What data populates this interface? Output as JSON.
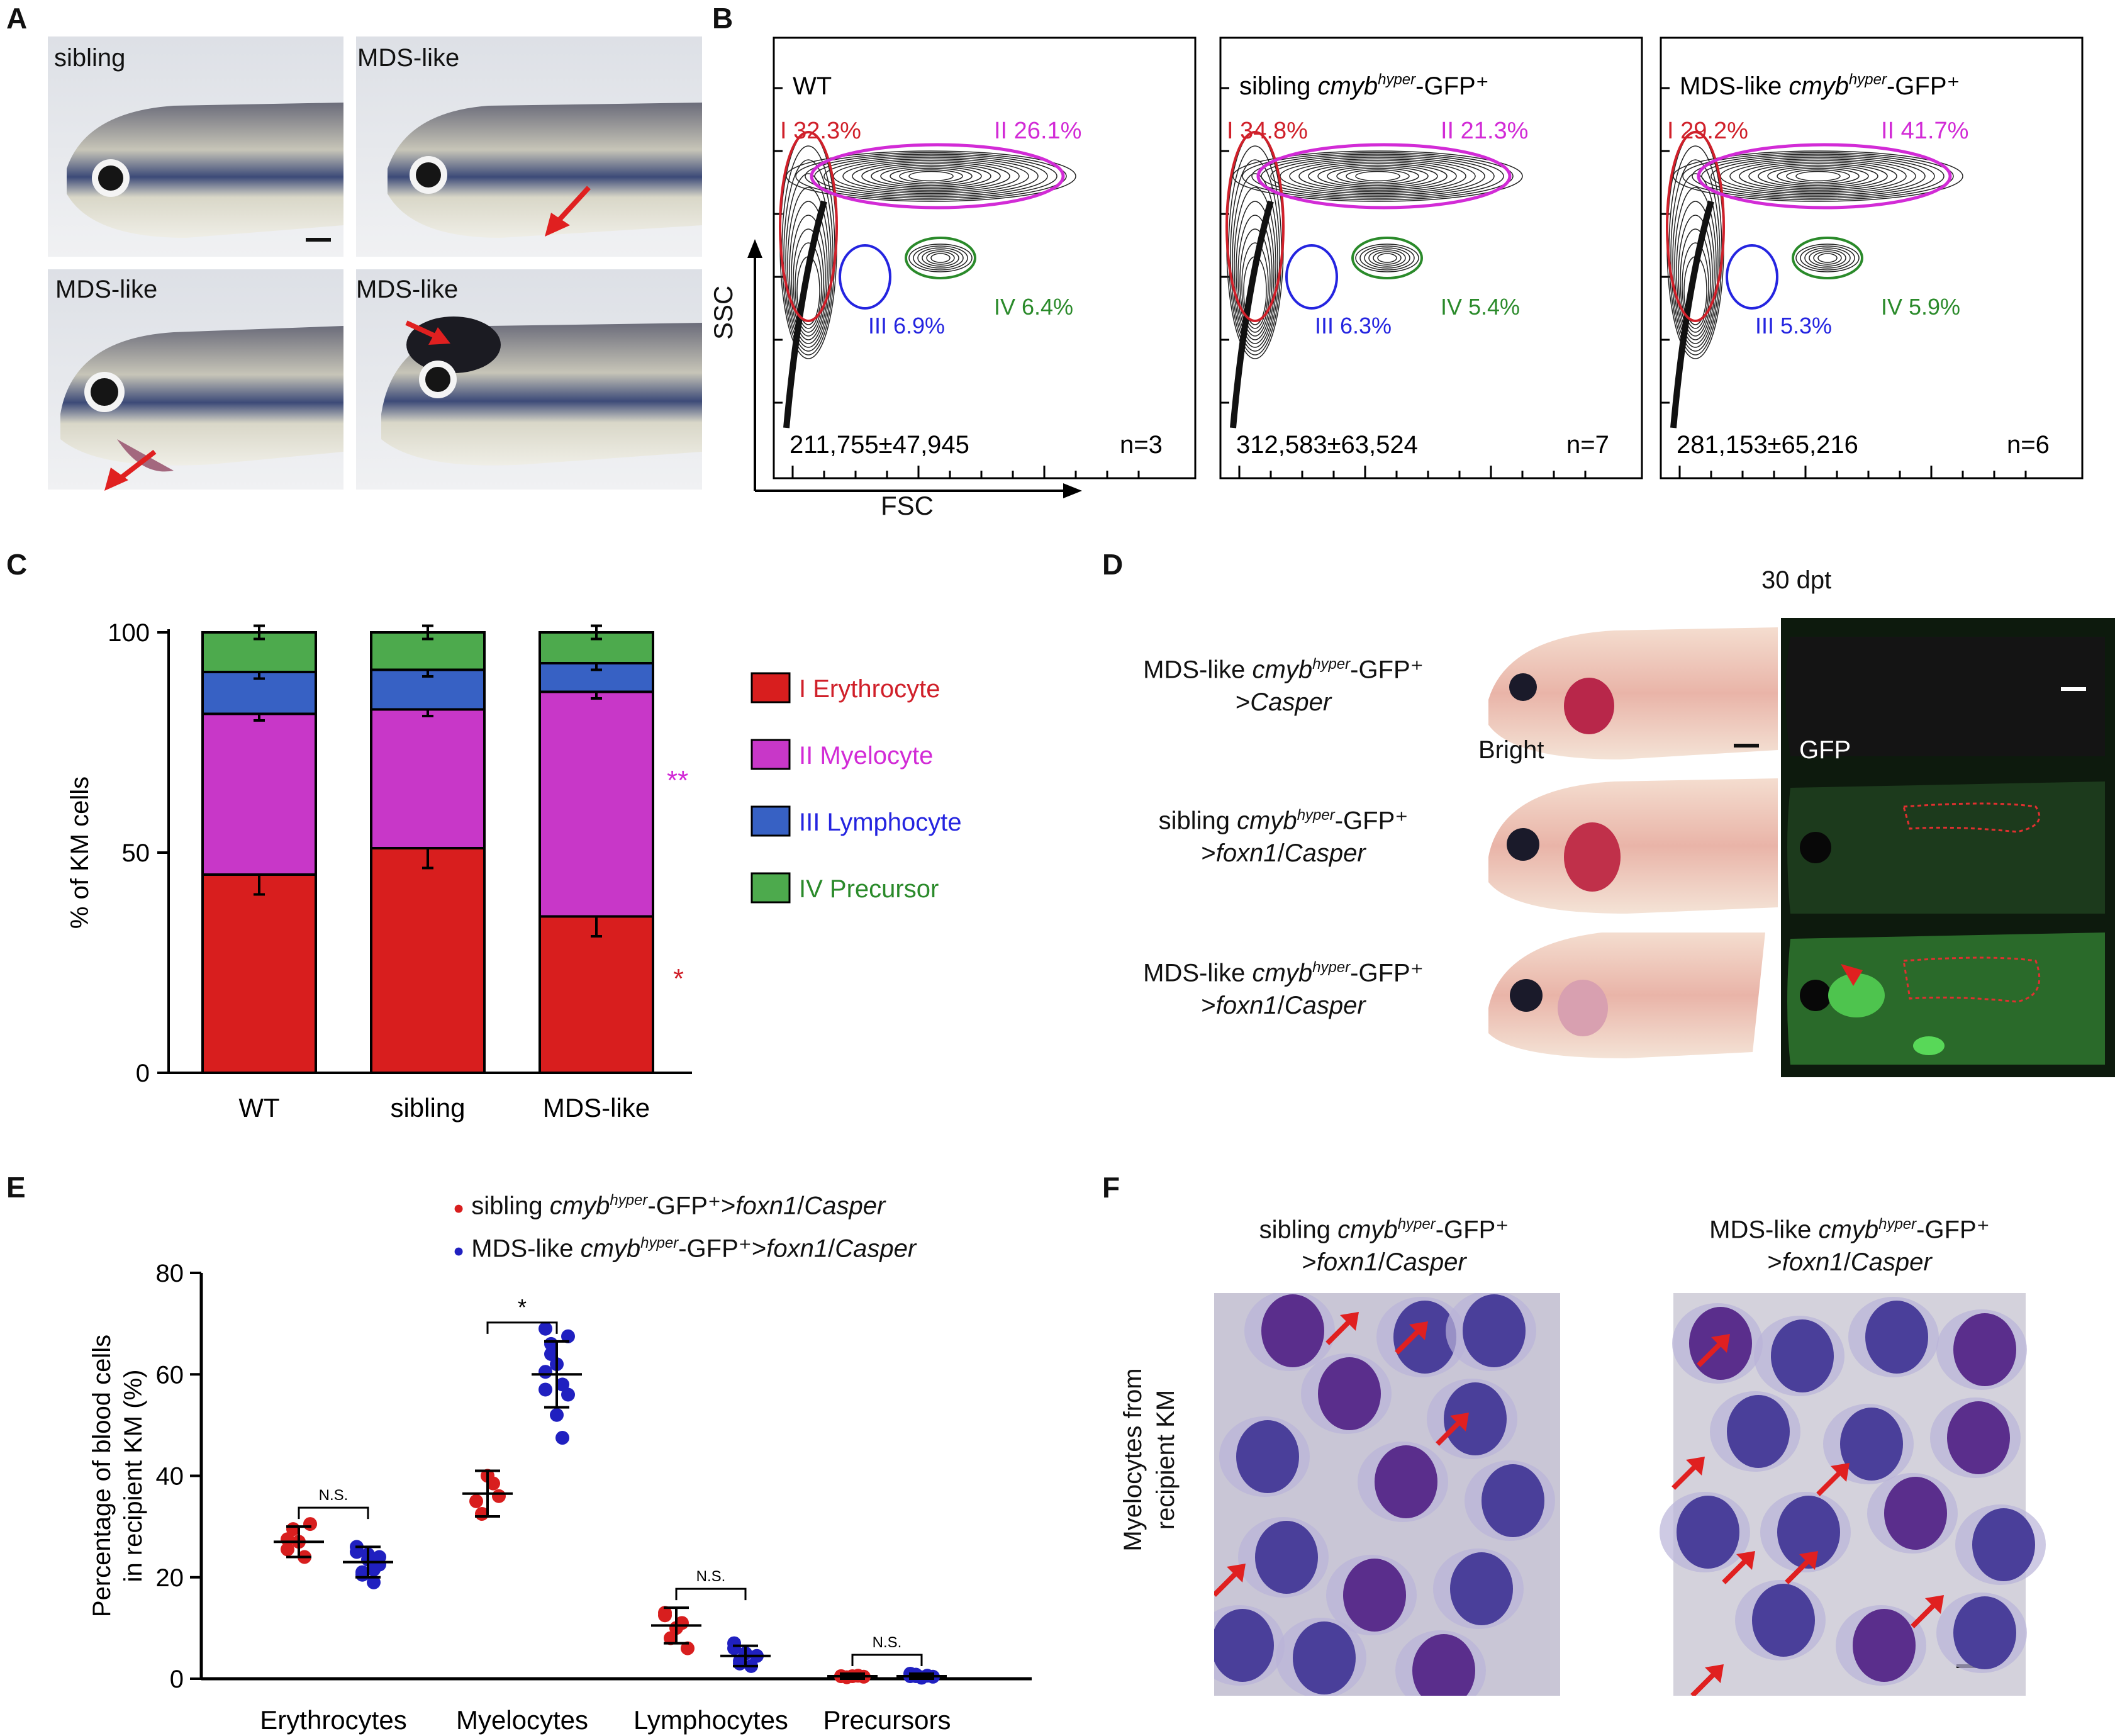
{
  "panelA": {
    "letter": "A",
    "photos": [
      {
        "label": "sibling"
      },
      {
        "label": "MDS-like"
      },
      {
        "label": "MDS-like"
      },
      {
        "label": "MDS-like"
      }
    ]
  },
  "panelB": {
    "letter": "B",
    "axis_y": "SSC",
    "axis_x": "FSC",
    "plots": [
      {
        "title_pre": "WT",
        "title_italic": "",
        "title_post": "",
        "g1": "I 32.3%",
        "g2": "II 26.1%",
        "g3": "III 6.9%",
        "g4": "IV 6.4%",
        "count": "211,755±47,945",
        "n": "n=3"
      },
      {
        "title_pre": "sibling ",
        "title_italic": "cmyb",
        "title_sup": "hyper",
        "title_post": "-GFP⁺",
        "g1": "I 34.8%",
        "g2": "II 21.3%",
        "g3": "III 6.3%",
        "g4": "IV 5.4%",
        "count": "312,583±63,524",
        "n": "n=7"
      },
      {
        "title_pre": "MDS-like ",
        "title_italic": "cmyb",
        "title_sup": "hyper",
        "title_post": "-GFP⁺",
        "g1": "I 29.2%",
        "g2": "II 41.7%",
        "g3": "III 5.3%",
        "g4": "IV 5.9%",
        "count": "281,153±65,216",
        "n": "n=6"
      }
    ],
    "colors": {
      "g1": "#d0202a",
      "g2": "#d22bd6",
      "g3": "#2424e0",
      "g4": "#2a8a2a"
    }
  },
  "panelC": {
    "letter": "C",
    "legend": [
      {
        "num": "I",
        "name": "Erythrocyte",
        "color": "#d81e1e",
        "text_color": "#d0202a"
      },
      {
        "num": "II",
        "name": "Myelocyte",
        "color": "#c837c8",
        "text_color": "#d22bd6"
      },
      {
        "num": "III",
        "name": "Lymphocyte",
        "color": "#3761c4",
        "text_color": "#2424e0"
      },
      {
        "num": "IV",
        "name": "Precursor",
        "color": "#4daa4d",
        "text_color": "#2a8a2a"
      }
    ],
    "sig_myelo": "**",
    "sig_ery": "*"
  },
  "panelD": {
    "letter": "D",
    "time": "30 dpt",
    "rows": [
      {
        "pre": "MDS-like ",
        "gene": "cmyb",
        "sup": "hyper",
        "post": "-GFP⁺",
        "line2": ">",
        "line2_it": "Casper",
        "line2_tail": ""
      },
      {
        "pre": "sibling ",
        "gene": "cmyb",
        "sup": "hyper",
        "post": "-GFP⁺",
        "line2": ">",
        "line2_it": "foxn1",
        "line2_tail": "/",
        "line2_it2": "Casper"
      },
      {
        "pre": "MDS-like ",
        "gene": "cmyb",
        "sup": "hyper",
        "post": "-GFP⁺",
        "line2": ">",
        "line2_it": "foxn1",
        "line2_tail": "/",
        "line2_it2": "Casper"
      }
    ],
    "bright_label": "Bright",
    "gfp_label": "GFP"
  },
  "panelE": {
    "letter": "E",
    "legend": [
      {
        "pre": "sibling ",
        "gene": "cmyb",
        "sup": "hyper",
        "post": "-GFP⁺>",
        "it1": "foxn1",
        "mid": "/",
        "it2": "Casper",
        "color": "#d81e1e"
      },
      {
        "pre": "MDS-like ",
        "gene": "cmyb",
        "sup": "hyper",
        "post": "-GFP⁺>",
        "it1": "foxn1",
        "mid": "/",
        "it2": "Casper",
        "color": "#2020c0"
      }
    ],
    "sig": [
      "N.S.",
      "*",
      "N.S.",
      "N.S."
    ]
  },
  "panelF": {
    "letter": "F",
    "side_label_1": "Myelocytes from",
    "side_label_2": "recipient KM",
    "images": [
      {
        "pre": "sibling ",
        "gene": "cmyb",
        "sup": "hyper",
        "post": "-GFP⁺",
        "line2": ">",
        "it1": "foxn1",
        "mid": "/",
        "it2": "Casper"
      },
      {
        "pre": "MDS-like ",
        "gene": "cmyb",
        "sup": "hyper",
        "post": "-GFP⁺",
        "line2": ">",
        "it1": "foxn1",
        "mid": "/",
        "it2": "Casper"
      }
    ]
  },
  "chart_data": [
    {
      "type": "bar",
      "stacked": true,
      "categories": [
        "WT",
        "sibling",
        "MDS-like"
      ],
      "ylabel": "% of KM cells",
      "ylim": [
        0,
        100
      ],
      "yticks": [
        0,
        50,
        100
      ],
      "series": [
        {
          "name": "I Erythrocyte",
          "values": [
            45,
            51,
            35.5
          ],
          "errors": [
            4.5,
            4.5,
            4.5
          ]
        },
        {
          "name": "II Myelocyte",
          "values": [
            36.5,
            31.5,
            51
          ],
          "errors": [
            1.5,
            1.5,
            1.5
          ]
        },
        {
          "name": "III Lymphocyte",
          "values": [
            9.5,
            9,
            6.5
          ],
          "errors": [
            1.5,
            1.5,
            1.5
          ]
        },
        {
          "name": "IV Precursor",
          "values": [
            9,
            8.5,
            7
          ],
          "errors": [
            1.5,
            1.5,
            1.5
          ]
        }
      ]
    },
    {
      "type": "scatter",
      "categories": [
        "Erythrocytes",
        "Myelocytes",
        "Lymphocytes",
        "Precursors"
      ],
      "ylabel": "Percentage of blood cells in recipient KM (%)",
      "ylim": [
        0,
        80
      ],
      "yticks": [
        0,
        20,
        40,
        60,
        80
      ],
      "series": [
        {
          "name": "sibling cmybhyper-GFP+>foxn1/Casper",
          "mean": [
            27,
            36.5,
            10.5,
            0.5
          ],
          "sd": [
            3,
            4.5,
            3.5,
            0.5
          ],
          "points": [
            [
              25.5,
              29.5,
              27,
              24,
              30.5,
              27.5
            ],
            [
              35,
              32.5,
              40,
              38.5,
              36
            ],
            [
              13,
              8,
              10,
              11,
              6,
              12.5
            ],
            [
              0.5,
              0.3,
              0.5,
              0.6,
              0.4,
              0.5
            ]
          ]
        },
        {
          "name": "MDS-like cmybhyper-GFP+>foxn1/Casper",
          "mean": [
            23,
            60,
            4.5,
            0.5
          ],
          "sd": [
            3,
            6.5,
            2,
            0.5
          ],
          "points": [
            [
              26,
              21,
              24.5,
              19,
              22.5,
              25,
              20.5,
              23.5,
              21.5,
              24
            ],
            [
              69,
              66,
              62,
              58,
              56,
              60.5,
              64,
              52,
              47.5,
              67.5,
              57
            ],
            [
              6,
              3.5,
              5,
              2.5,
              4.5,
              7,
              3
            ],
            [
              0.5,
              0.8,
              0.3,
              0.6,
              0.4,
              1,
              0.5,
              0.2
            ]
          ]
        }
      ]
    }
  ]
}
